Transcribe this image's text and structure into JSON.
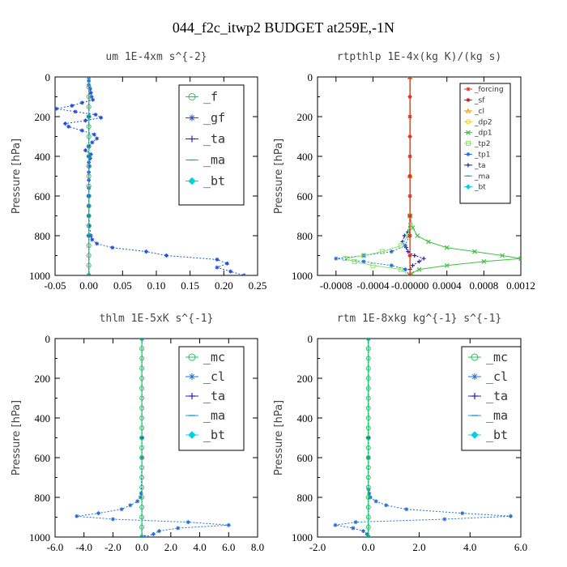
{
  "figure": {
    "title": "044_f2c_itwp2  BUDGET at259E,-1N"
  },
  "chart_data": [
    {
      "type": "line",
      "title": "um   1E-4xm s^{-2}",
      "ylabel": "Pressure [hPa]",
      "xlim": [
        -0.05,
        0.25
      ],
      "ylim": [
        1000,
        0
      ],
      "xticks": [
        -0.05,
        0.0,
        0.05,
        0.1,
        0.15,
        0.2,
        0.25
      ],
      "xtick_labels": [
        "-0.05",
        "0.00",
        "0.05",
        "0.10",
        "0.15",
        "0.20",
        "0.25"
      ],
      "yticks": [
        0,
        200,
        400,
        600,
        800,
        1000
      ],
      "ytick_labels": [
        "0",
        "200",
        "400",
        "600",
        "800",
        "1000"
      ],
      "legend": {
        "position": "upper-right",
        "size": "large"
      },
      "series": [
        {
          "name": "_f",
          "color": "#22c55e",
          "marker": "circle",
          "style": "solid",
          "y": [
            0,
            50,
            100,
            150,
            200,
            250,
            300,
            350,
            400,
            450,
            500,
            550,
            600,
            650,
            700,
            750,
            800,
            850,
            900,
            950,
            1000
          ],
          "x": [
            0,
            0,
            0,
            0,
            0,
            0,
            0,
            0,
            0,
            0,
            0,
            0,
            0,
            0,
            0,
            0,
            0,
            0,
            0,
            0,
            0
          ]
        },
        {
          "name": "_gf",
          "color": "#1f4fd6",
          "marker": "star",
          "style": "dashed",
          "y": [
            0,
            20,
            40,
            60,
            80,
            100,
            115,
            130,
            145,
            160,
            175,
            190,
            205,
            220,
            235,
            250,
            270,
            290,
            310,
            330,
            350,
            370,
            390,
            410,
            430,
            450,
            480,
            520,
            560,
            600,
            650,
            700,
            750,
            800,
            820,
            840,
            860,
            880,
            900,
            920,
            940,
            960,
            980,
            1000
          ],
          "x": [
            0.0,
            0.0,
            0.0,
            0.002,
            0.003,
            0.004,
            0.006,
            -0.01,
            -0.025,
            -0.048,
            -0.02,
            0.01,
            0.018,
            -0.005,
            -0.035,
            -0.03,
            -0.01,
            0.008,
            0.012,
            0.005,
            0.0,
            -0.005,
            0.003,
            0.002,
            0.0,
            0.001,
            0.0,
            0.0,
            0.0,
            0.0,
            0.0,
            0.0,
            0.001,
            0.003,
            0.005,
            0.012,
            0.035,
            0.085,
            0.115,
            0.19,
            0.205,
            0.19,
            0.21,
            0.23
          ]
        },
        {
          "name": "_ta",
          "color": "#2020c8",
          "marker": "plus",
          "style": "dashed",
          "y": [
            0,
            200,
            400,
            600,
            800,
            1000
          ],
          "x": [
            0,
            0,
            0,
            0,
            0,
            0
          ]
        },
        {
          "name": "_ma",
          "color": "#1aa0d8",
          "marker": "dash",
          "style": "dashed",
          "y": [
            0,
            200,
            400,
            600,
            800,
            1000
          ],
          "x": [
            0,
            0,
            0,
            0,
            0,
            0
          ]
        },
        {
          "name": "_bt",
          "color": "#00d0e0",
          "marker": "diamond",
          "style": "solid",
          "y": [
            0,
            200,
            400,
            600,
            800,
            1000
          ],
          "x": [
            0,
            0,
            0,
            0,
            0,
            0
          ]
        }
      ]
    },
    {
      "type": "line",
      "title": "rtpthlp   1E-4x(kg K)/(kg s)",
      "ylabel": "Pressure [hPa]",
      "xlim": [
        -0.001,
        0.0012
      ],
      "ylim": [
        1000,
        0
      ],
      "xticks": [
        -0.0008,
        -0.0004,
        0.0,
        0.0004,
        0.0008,
        0.0012
      ],
      "xtick_labels": [
        "-0.0008",
        "-0.0004",
        "-0.00000",
        "0.0004",
        "0.0008",
        "0.0012"
      ],
      "yticks": [
        0,
        200,
        400,
        600,
        800,
        1000
      ],
      "ytick_labels": [
        "0",
        "200",
        "400",
        "600",
        "800",
        "1000"
      ],
      "legend": {
        "position": "upper-right",
        "size": "small"
      },
      "series": [
        {
          "name": "_forcing",
          "color": "#e03020",
          "marker": "star",
          "style": "solid",
          "y": [
            0,
            100,
            200,
            300,
            400,
            500,
            600,
            700,
            800,
            900,
            1000
          ],
          "x": [
            0,
            0,
            0,
            0,
            0,
            0,
            0,
            0,
            0,
            0,
            0
          ]
        },
        {
          "name": "_sf",
          "color": "#d01010",
          "marker": "star",
          "style": "solid",
          "y": [
            0,
            100,
            200,
            300,
            400,
            500,
            600,
            700,
            800,
            900,
            1000
          ],
          "x": [
            0,
            0,
            0,
            0,
            0,
            0,
            0,
            0,
            0,
            0,
            0
          ]
        },
        {
          "name": "_cl",
          "color": "#f0a020",
          "marker": "triangle",
          "style": "solid",
          "y": [
            0,
            500,
            1000
          ],
          "x": [
            0,
            0,
            0
          ]
        },
        {
          "name": "_dp2",
          "color": "#f0d020",
          "marker": "circle",
          "style": "solid",
          "y": [
            0,
            500,
            1000
          ],
          "x": [
            0,
            0,
            0
          ]
        },
        {
          "name": "_dp1",
          "color": "#40c040",
          "marker": "cross",
          "style": "solid",
          "y": [
            0,
            700,
            760,
            800,
            830,
            860,
            880,
            900,
            915,
            930,
            950,
            970,
            990,
            1000
          ],
          "x": [
            0,
            0,
            3e-05,
            8e-05,
            0.0002,
            0.0004,
            0.0007,
            0.001,
            0.0012,
            0.0008,
            0.0004,
            0.0001,
            2e-05,
            0
          ]
        },
        {
          "name": "_tp2",
          "color": "#90e070",
          "marker": "square",
          "style": "solid",
          "y": [
            0,
            700,
            800,
            850,
            880,
            900,
            915,
            930,
            950,
            970,
            1000
          ],
          "x": [
            0,
            0,
            -2e-05,
            -0.0001,
            -0.0003,
            -0.0005,
            -0.0007,
            -0.0006,
            -0.0004,
            -0.0001,
            0
          ]
        },
        {
          "name": "_tp1",
          "color": "#1f6fd6",
          "marker": "star",
          "style": "dashed",
          "y": [
            0,
            700,
            800,
            850,
            880,
            900,
            915,
            930,
            950,
            970,
            1000
          ],
          "x": [
            0,
            0,
            -1e-05,
            -5e-05,
            -0.0002,
            -0.0005,
            -0.0008,
            -0.0005,
            -0.0002,
            -5e-05,
            0
          ]
        },
        {
          "name": "_ta",
          "color": "#2020c8",
          "marker": "plus",
          "style": "dashed",
          "y": [
            0,
            700,
            780,
            800,
            830,
            860,
            880,
            900,
            915,
            930,
            950,
            970,
            1000
          ],
          "x": [
            0,
            0,
            -2e-05,
            -6e-05,
            -8e-05,
            -4e-05,
            -2e-05,
            5e-05,
            0.00015,
            0.0001,
            3e-05,
            0,
            0
          ]
        },
        {
          "name": "_ma",
          "color": "#1aa0d8",
          "marker": "dash",
          "style": "dashed",
          "y": [
            0,
            500,
            1000
          ],
          "x": [
            0,
            0,
            0
          ]
        },
        {
          "name": "_bt",
          "color": "#00d0e0",
          "marker": "diamond",
          "style": "solid",
          "y": [
            0,
            500,
            1000
          ],
          "x": [
            0,
            0,
            0
          ]
        }
      ]
    },
    {
      "type": "line",
      "title": "thlm   1E-5xK s^{-1}",
      "ylabel": "Pressure [hPa]",
      "xlim": [
        -6.0,
        8.0
      ],
      "ylim": [
        1000,
        0
      ],
      "xticks": [
        -6.0,
        -4.0,
        -2.0,
        0.0,
        2.0,
        4.0,
        6.0,
        8.0
      ],
      "xtick_labels": [
        "-6.0",
        "-4.0",
        "-2.0",
        "0.0",
        "2.0",
        "4.0",
        "6.0",
        "8.0"
      ],
      "yticks": [
        0,
        200,
        400,
        600,
        800,
        1000
      ],
      "ytick_labels": [
        "0",
        "200",
        "400",
        "600",
        "800",
        "1000"
      ],
      "legend": {
        "position": "upper-right",
        "size": "large"
      },
      "series": [
        {
          "name": "_mc",
          "color": "#22c55e",
          "marker": "circle",
          "style": "solid",
          "y": [
            0,
            50,
            100,
            150,
            200,
            250,
            300,
            350,
            400,
            450,
            500,
            550,
            600,
            650,
            700,
            750,
            800,
            850,
            900,
            950,
            1000
          ],
          "x": [
            0,
            0,
            0,
            0,
            0,
            0,
            0,
            0,
            0,
            0,
            0,
            0,
            0,
            0,
            0,
            0,
            0,
            0,
            0,
            0,
            0
          ]
        },
        {
          "name": "_cl",
          "color": "#1f6fd6",
          "marker": "star",
          "style": "dashed",
          "y": [
            0,
            600,
            780,
            800,
            820,
            840,
            860,
            880,
            895,
            910,
            925,
            940,
            955,
            970,
            985,
            1000
          ],
          "x": [
            0,
            0,
            -0.05,
            -0.1,
            -0.3,
            -0.8,
            -1.4,
            -3.0,
            -4.5,
            -2.0,
            3.2,
            6.0,
            2.5,
            1.2,
            0.8,
            0.2
          ]
        },
        {
          "name": "_ta",
          "color": "#2020c8",
          "marker": "plus",
          "style": "dashed",
          "y": [
            0,
            500,
            1000
          ],
          "x": [
            0,
            0,
            0
          ]
        },
        {
          "name": "_ma",
          "color": "#1aa0d8",
          "marker": "dash",
          "style": "dashed",
          "y": [
            0,
            500,
            1000
          ],
          "x": [
            0,
            0,
            0
          ]
        },
        {
          "name": "_bt",
          "color": "#00d0e0",
          "marker": "diamond",
          "style": "solid",
          "y": [
            0,
            500,
            1000
          ],
          "x": [
            0,
            0,
            0
          ]
        }
      ]
    },
    {
      "type": "line",
      "title": "rtm   1E-8xkg kg^{-1} s^{-1}",
      "ylabel": "Pressure [hPa]",
      "xlim": [
        -2.0,
        6.0
      ],
      "ylim": [
        1000,
        0
      ],
      "xticks": [
        -2.0,
        0.0,
        2.0,
        4.0,
        6.0
      ],
      "xtick_labels": [
        "-2.0",
        "0.0",
        "2.0",
        "4.0",
        "6.0"
      ],
      "yticks": [
        0,
        200,
        400,
        600,
        800,
        1000
      ],
      "ytick_labels": [
        "0",
        "200",
        "400",
        "600",
        "800",
        "1000"
      ],
      "legend": {
        "position": "upper-right",
        "size": "large"
      },
      "series": [
        {
          "name": "_mc",
          "color": "#22c55e",
          "marker": "circle",
          "style": "solid",
          "y": [
            0,
            50,
            100,
            150,
            200,
            250,
            300,
            350,
            400,
            450,
            500,
            550,
            600,
            650,
            700,
            750,
            800,
            850,
            900,
            950,
            1000
          ],
          "x": [
            0,
            0,
            0,
            0,
            0,
            0,
            0,
            0,
            0,
            0,
            0,
            0,
            0,
            0,
            0,
            0,
            0,
            0,
            0,
            0,
            0
          ]
        },
        {
          "name": "_cl",
          "color": "#1f6fd6",
          "marker": "star",
          "style": "dashed",
          "y": [
            0,
            600,
            760,
            780,
            800,
            820,
            840,
            860,
            880,
            895,
            910,
            925,
            940,
            955,
            970,
            985,
            1000
          ],
          "x": [
            0,
            0,
            0.01,
            0.03,
            0.08,
            0.3,
            0.7,
            1.5,
            3.7,
            5.6,
            3.0,
            -0.5,
            -1.3,
            -0.6,
            -0.2,
            -0.05,
            0
          ]
        },
        {
          "name": "_ta",
          "color": "#2020c8",
          "marker": "plus",
          "style": "dashed",
          "y": [
            0,
            500,
            1000
          ],
          "x": [
            0,
            0,
            0
          ]
        },
        {
          "name": "_ma",
          "color": "#1aa0d8",
          "marker": "dash",
          "style": "dashed",
          "y": [
            0,
            500,
            1000
          ],
          "x": [
            0,
            0,
            0
          ]
        },
        {
          "name": "_bt",
          "color": "#00d0e0",
          "marker": "diamond",
          "style": "solid",
          "y": [
            0,
            500,
            1000
          ],
          "x": [
            0,
            0,
            0
          ]
        }
      ]
    }
  ]
}
